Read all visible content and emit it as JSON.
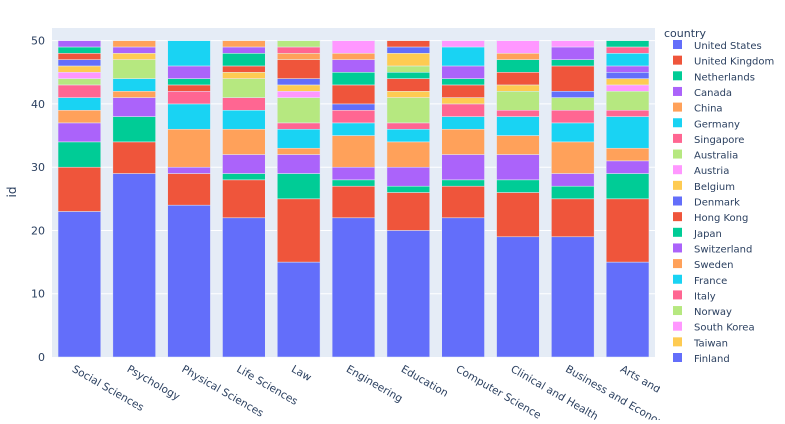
{
  "chart_data": {
    "type": "bar",
    "barmode": "stack",
    "title": "",
    "xlabel": "",
    "ylabel": "id",
    "ylim": [
      0,
      52
    ],
    "yticks": [
      0,
      10,
      20,
      30,
      40,
      50
    ],
    "grid": true,
    "legend_title": "country",
    "legend_position": "right",
    "palette": [
      "#636EFA",
      "#EF553B",
      "#00CC96",
      "#AB63FA",
      "#FFA15A",
      "#19D3F3",
      "#FF6692",
      "#B6E880",
      "#FF97FF",
      "#FECB52"
    ],
    "categories": [
      "Social Sciences",
      "Psychology",
      "Physical Sciences",
      "Life Sciences",
      "Law",
      "Engineering",
      "Education",
      "Computer Science",
      "Clinical and Health",
      "Business and Economics",
      "Arts and Humanities"
    ],
    "series": [
      {
        "name": "United States",
        "values": [
          23,
          29,
          24,
          22,
          15,
          22,
          20,
          22,
          19,
          19,
          15
        ]
      },
      {
        "name": "United Kingdom",
        "values": [
          7,
          5,
          5,
          6,
          10,
          5,
          6,
          5,
          7,
          6,
          10
        ]
      },
      {
        "name": "Netherlands",
        "values": [
          4,
          4,
          0,
          1,
          4,
          1,
          1,
          1,
          2,
          2,
          4
        ]
      },
      {
        "name": "Canada",
        "values": [
          3,
          3,
          1,
          3,
          3,
          2,
          3,
          4,
          4,
          2,
          2
        ]
      },
      {
        "name": "China",
        "values": [
          2,
          1,
          6,
          4,
          1,
          5,
          4,
          4,
          3,
          5,
          2
        ]
      },
      {
        "name": "Germany",
        "values": [
          2,
          2,
          4,
          3,
          3,
          2,
          2,
          2,
          3,
          3,
          5
        ]
      },
      {
        "name": "Singapore",
        "values": [
          2,
          0,
          2,
          2,
          1,
          2,
          1,
          2,
          1,
          2,
          1
        ]
      },
      {
        "name": "Australia",
        "values": [
          1,
          3,
          0,
          3,
          4,
          0,
          4,
          0,
          3,
          2,
          3
        ]
      },
      {
        "name": "Austria",
        "values": [
          1,
          0,
          0,
          0,
          1,
          0,
          0,
          0,
          0,
          0,
          1
        ]
      },
      {
        "name": "Belgium",
        "values": [
          1,
          1,
          0,
          1,
          1,
          0,
          1,
          1,
          1,
          0,
          1
        ]
      },
      {
        "name": "Denmark",
        "values": [
          1,
          0,
          0,
          0,
          1,
          1,
          0,
          0,
          0,
          1,
          1
        ]
      },
      {
        "name": "Hong Kong",
        "values": [
          1,
          0,
          1,
          1,
          3,
          3,
          2,
          2,
          2,
          4,
          0
        ]
      },
      {
        "name": "Japan",
        "values": [
          1,
          0,
          1,
          2,
          0,
          2,
          1,
          1,
          2,
          1,
          0
        ]
      },
      {
        "name": "Switzerland",
        "values": [
          1,
          1,
          2,
          1,
          0,
          2,
          0,
          2,
          0,
          2,
          1
        ]
      },
      {
        "name": "Sweden",
        "values": [
          0,
          1,
          0,
          1,
          1,
          1,
          0,
          0,
          1,
          0,
          0
        ]
      },
      {
        "name": "France",
        "values": [
          0,
          0,
          4,
          0,
          0,
          0,
          0,
          3,
          0,
          0,
          2
        ]
      },
      {
        "name": "Italy",
        "values": [
          0,
          0,
          0,
          0,
          1,
          0,
          0,
          0,
          0,
          0,
          1
        ]
      },
      {
        "name": "Norway",
        "values": [
          0,
          0,
          0,
          0,
          1,
          0,
          1,
          0,
          0,
          0,
          0
        ]
      },
      {
        "name": "South Korea",
        "values": [
          0,
          0,
          0,
          0,
          0,
          2,
          0,
          1,
          2,
          1,
          0
        ]
      },
      {
        "name": "Taiwan",
        "values": [
          0,
          0,
          0,
          0,
          0,
          0,
          2,
          0,
          0,
          0,
          0
        ]
      },
      {
        "name": "Finland",
        "values": [
          0,
          0,
          0,
          0,
          0,
          0,
          1,
          0,
          0,
          0,
          0
        ]
      },
      {
        "values": [
          0,
          0,
          0,
          0,
          0,
          0,
          1,
          0,
          0,
          0,
          0
        ]
      },
      {
        "values": [
          0,
          0,
          0,
          0,
          0,
          0,
          0,
          0,
          0,
          0,
          1
        ]
      }
    ]
  }
}
